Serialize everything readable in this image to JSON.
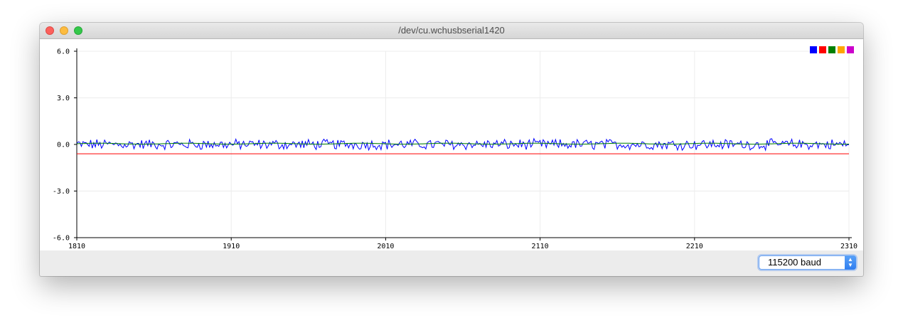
{
  "window": {
    "title": "/dev/cu.wchusbserial1420"
  },
  "legend": {
    "colors": [
      "#0000ff",
      "#ff0000",
      "#008000",
      "#ffa500",
      "#cc00cc"
    ]
  },
  "baud": {
    "selected": "115200 baud",
    "arrows_icon": "up-down-chevron-icon"
  },
  "chart_data": {
    "type": "line",
    "ylim": [
      -6.0,
      6.0
    ],
    "xlim": [
      1810,
      2310
    ],
    "y_ticks": [
      "6.0",
      "3.0",
      "0.0",
      "-3.0",
      "-6.0"
    ],
    "x_ticks": [
      "1810",
      "1910",
      "2010",
      "2110",
      "2210",
      "2310"
    ],
    "grid": true,
    "legend_placement": "top-right",
    "series": [
      {
        "color": "#0000ff",
        "mean": 0.0,
        "amplitude": 0.3,
        "noisy": true
      },
      {
        "color": "#ff0000",
        "mean": -0.6,
        "amplitude": 0.0,
        "noisy": false
      },
      {
        "color": "#008000",
        "mean": 0.05,
        "amplitude": 0.03,
        "noisy": false
      }
    ]
  }
}
